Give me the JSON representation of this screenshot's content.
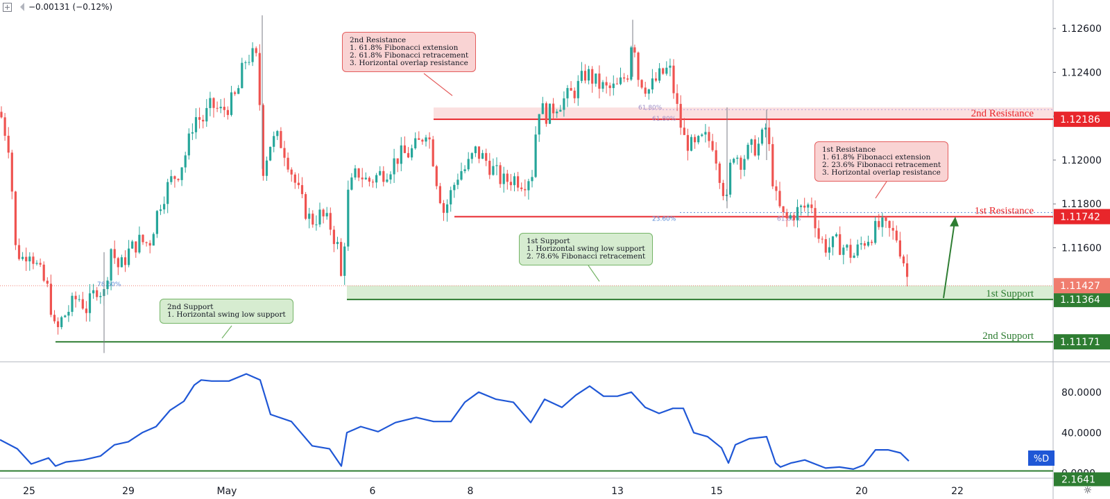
{
  "header": {
    "change_text": "−0.00131 (−0.12%)"
  },
  "colors": {
    "bull": "#26a69a",
    "bear": "#ef5350",
    "resistance_line": "#e8262b",
    "support_line": "#2e7d32",
    "stoch_line": "#1f57d6",
    "current_price": "#f07d6e"
  },
  "annotations": {
    "res2": "2nd Resistance\n1. 61.8% Fibonacci extension\n2. 61.8% Fibonacci retracement\n3. Horizontal overlap resistance",
    "res1": "1st Resistance\n1. 61.8% Fibonacci extension\n2. 23.6% Fibonacci retracement\n3. Horizontal overlap resistance",
    "sup1": "1st Support\n1. Horizontal swing low support\n2. 78.6% Fibonacci retracement",
    "sup2": "2nd Support\n1. Horizontal swing low support"
  },
  "chart_data": [
    {
      "type": "candlestick",
      "title": "",
      "x_tick_labels": [
        "25",
        "29",
        "May",
        "6",
        "8",
        "13",
        "15",
        "20",
        "22"
      ],
      "y_tick_labels": [
        "1.12600",
        "1.12400",
        "1.12200",
        "1.12000",
        "1.11800",
        "1.11600"
      ],
      "ylim": [
        1.1108,
        1.1273
      ],
      "grid": false,
      "levels": [
        {
          "label": "2nd Resistance",
          "value": 1.12186,
          "value_label": "1.12186",
          "color": "#e8262b"
        },
        {
          "label": "1st Resistance",
          "value": 1.11742,
          "value_label": "1.11742",
          "color": "#e8262b"
        },
        {
          "label": "1st Support",
          "value": 1.11364,
          "value_label": "1.11364",
          "color": "#2e7d32"
        },
        {
          "label": "2nd Support",
          "value": 1.11171,
          "value_label": "1.11171",
          "color": "#2e7d32"
        }
      ],
      "current_price": {
        "value": 1.11427,
        "label": "1.11427"
      },
      "fib_labels": [
        "61.80%",
        "61.80%",
        "23.60%",
        "61.80%",
        "78.60%"
      ],
      "price_path": [
        [
          0,
          1.1222
        ],
        [
          14,
          1.1205
        ],
        [
          22,
          1.116
        ],
        [
          32,
          1.1155
        ],
        [
          42,
          1.116
        ],
        [
          55,
          1.115
        ],
        [
          70,
          1.114
        ],
        [
          80,
          1.112
        ],
        [
          90,
          1.1128
        ],
        [
          100,
          1.1132
        ],
        [
          112,
          1.1138
        ],
        [
          125,
          1.1132
        ],
        [
          140,
          1.1142
        ],
        [
          150,
          1.1139
        ],
        [
          160,
          1.116
        ],
        [
          172,
          1.115
        ],
        [
          185,
          1.1158
        ],
        [
          200,
          1.1163
        ],
        [
          215,
          1.1162
        ],
        [
          230,
          1.118
        ],
        [
          245,
          1.119
        ],
        [
          258,
          1.1195
        ],
        [
          270,
          1.1205
        ],
        [
          280,
          1.122
        ],
        [
          292,
          1.1218
        ],
        [
          305,
          1.1225
        ],
        [
          318,
          1.1222
        ],
        [
          330,
          1.1225
        ],
        [
          342,
          1.123
        ],
        [
          352,
          1.1245
        ],
        [
          362,
          1.1248
        ],
        [
          372,
          1.1245
        ],
        [
          378,
          1.1195
        ],
        [
          390,
          1.1208
        ],
        [
          402,
          1.121
        ],
        [
          412,
          1.1203
        ],
        [
          425,
          1.119
        ],
        [
          436,
          1.118
        ],
        [
          448,
          1.1172
        ],
        [
          462,
          1.1175
        ],
        [
          476,
          1.117
        ],
        [
          487,
          1.116
        ],
        [
          492,
          1.1145
        ],
        [
          502,
          1.1185
        ],
        [
          515,
          1.1195
        ],
        [
          530,
          1.119
        ],
        [
          545,
          1.1193
        ],
        [
          560,
          1.1196
        ],
        [
          575,
          1.1202
        ],
        [
          590,
          1.1203
        ],
        [
          605,
          1.1208
        ],
        [
          615,
          1.1215
        ],
        [
          622,
          1.1205
        ],
        [
          630,
          1.119
        ],
        [
          640,
          1.1176
        ],
        [
          650,
          1.1185
        ],
        [
          662,
          1.1195
        ],
        [
          672,
          1.1196
        ],
        [
          685,
          1.1204
        ],
        [
          700,
          1.12
        ],
        [
          712,
          1.1195
        ],
        [
          725,
          1.119
        ],
        [
          740,
          1.1192
        ],
        [
          755,
          1.119
        ],
        [
          768,
          1.1195
        ],
        [
          775,
          1.1225
        ],
        [
          790,
          1.122
        ],
        [
          800,
          1.1225
        ],
        [
          815,
          1.1228
        ],
        [
          830,
          1.1232
        ],
        [
          845,
          1.124
        ],
        [
          860,
          1.1235
        ],
        [
          875,
          1.1232
        ],
        [
          890,
          1.1233
        ],
        [
          905,
          1.124
        ],
        [
          912,
          1.126
        ],
        [
          920,
          1.1238
        ],
        [
          935,
          1.1232
        ],
        [
          950,
          1.1238
        ],
        [
          965,
          1.1242
        ],
        [
          975,
          1.1225
        ],
        [
          985,
          1.121
        ],
        [
          1000,
          1.1205
        ],
        [
          1015,
          1.121
        ],
        [
          1028,
          1.1208
        ],
        [
          1040,
          1.119
        ],
        [
          1048,
          1.118
        ],
        [
          1055,
          1.1205
        ],
        [
          1068,
          1.12
        ],
        [
          1082,
          1.1205
        ],
        [
          1095,
          1.1207
        ],
        [
          1105,
          1.1216
        ],
        [
          1112,
          1.1195
        ],
        [
          1120,
          1.118
        ],
        [
          1132,
          1.1172
        ],
        [
          1145,
          1.1176
        ],
        [
          1158,
          1.1178
        ],
        [
          1170,
          1.118
        ],
        [
          1180,
          1.1165
        ],
        [
          1192,
          1.116
        ],
        [
          1205,
          1.1162
        ],
        [
          1218,
          1.116
        ],
        [
          1230,
          1.1156
        ],
        [
          1242,
          1.1162
        ],
        [
          1255,
          1.1166
        ],
        [
          1268,
          1.117
        ],
        [
          1280,
          1.1168
        ],
        [
          1292,
          1.1165
        ],
        [
          1302,
          1.1155
        ],
        [
          1310,
          1.1143
        ]
      ]
    },
    {
      "type": "line",
      "title": "",
      "series": [
        {
          "name": "%D"
        }
      ],
      "y_tick_labels": [
        "80.0000",
        "40.0000",
        "0.0000"
      ],
      "ylim": [
        -5,
        110
      ],
      "level": {
        "value": 2.1641,
        "label": "2.1641"
      },
      "x": [
        0,
        25,
        45,
        70,
        80,
        95,
        120,
        145,
        165,
        185,
        205,
        225,
        245,
        265,
        280,
        290,
        305,
        330,
        355,
        375,
        390,
        420,
        450,
        475,
        492,
        500,
        520,
        545,
        570,
        600,
        625,
        650,
        670,
        690,
        715,
        740,
        765,
        785,
        810,
        830,
        850,
        870,
        890,
        910,
        930,
        950,
        970,
        985,
        1000,
        1020,
        1040,
        1050,
        1060,
        1080,
        1105,
        1118,
        1125,
        1140,
        1160,
        1190,
        1210,
        1230,
        1245,
        1262,
        1280,
        1298,
        1310
      ],
      "values": [
        33,
        24,
        9,
        15,
        7,
        11,
        13,
        17,
        28,
        31,
        40,
        46,
        62,
        71,
        87,
        92,
        91,
        91,
        98,
        92,
        58,
        51,
        27,
        24,
        7,
        40,
        46,
        41,
        50,
        55,
        51,
        51,
        70,
        80,
        73,
        70,
        50,
        73,
        65,
        77,
        86,
        76,
        76,
        80,
        65,
        59,
        64,
        64,
        40,
        36,
        25,
        10,
        28,
        34,
        36,
        10,
        6,
        10,
        13,
        5,
        6,
        4,
        8,
        23,
        23,
        20,
        12
      ]
    }
  ]
}
